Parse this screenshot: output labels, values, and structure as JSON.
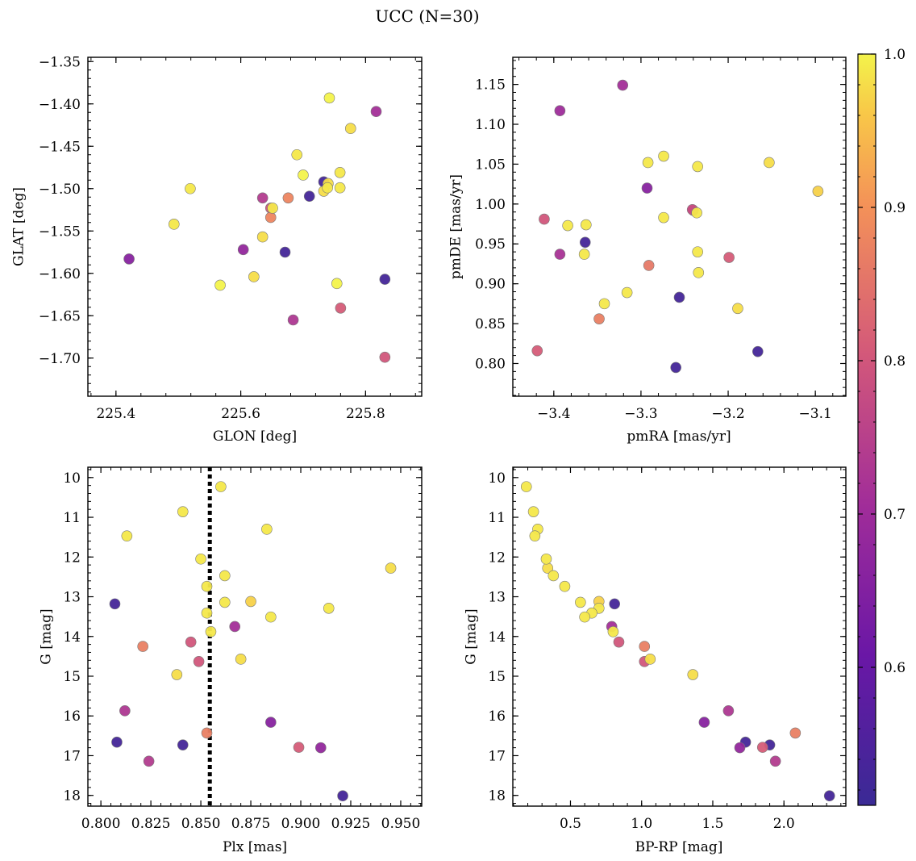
{
  "title": "UCC (N=30)",
  "colorbar": {
    "cmap": "plasma",
    "range": [
      0.51,
      1.0
    ],
    "ticks": [
      0.6,
      0.7,
      0.8,
      0.9,
      1.0
    ],
    "tick_labels": [
      "0.6",
      "0.7",
      "0.8",
      "0.9",
      "1.0"
    ]
  },
  "chart_data": [
    {
      "type": "scatter",
      "xlabel": "GLON [deg]",
      "ylabel": "GLAT [deg]",
      "xlim": [
        225.355,
        225.89
      ],
      "ylim": [
        -1.745,
        -1.345
      ],
      "y_inverted": false,
      "xticks": [
        225.4,
        225.6,
        225.8
      ],
      "xtick_labels": [
        "225.4",
        "225.6",
        "225.8"
      ],
      "yticks": [
        -1.35,
        -1.4,
        -1.45,
        -1.5,
        -1.55,
        -1.6,
        -1.65,
        -1.7
      ],
      "ytick_labels": [
        "−1.35",
        "−1.40",
        "−1.45",
        "−1.50",
        "−1.55",
        "−1.60",
        "−1.65",
        "−1.70"
      ],
      "points": [
        {
          "x": 225.742,
          "y": -1.393,
          "c": 1.0
        },
        {
          "x": 225.817,
          "y": -1.409,
          "c": 0.71
        },
        {
          "x": 225.776,
          "y": -1.429,
          "c": 0.98
        },
        {
          "x": 225.69,
          "y": -1.46,
          "c": 0.99
        },
        {
          "x": 225.759,
          "y": -1.481,
          "c": 0.99
        },
        {
          "x": 225.7,
          "y": -1.484,
          "c": 1.0
        },
        {
          "x": 225.733,
          "y": -1.492,
          "c": 0.53
        },
        {
          "x": 225.74,
          "y": -1.494,
          "c": 0.98
        },
        {
          "x": 225.759,
          "y": -1.499,
          "c": 0.99
        },
        {
          "x": 225.739,
          "y": -1.499,
          "c": 0.99
        },
        {
          "x": 225.733,
          "y": -1.503,
          "c": 0.98
        },
        {
          "x": 225.519,
          "y": -1.5,
          "c": 0.99
        },
        {
          "x": 225.635,
          "y": -1.511,
          "c": 0.74
        },
        {
          "x": 225.71,
          "y": -1.509,
          "c": 0.53
        },
        {
          "x": 225.676,
          "y": -1.511,
          "c": 0.88
        },
        {
          "x": 225.648,
          "y": -1.523,
          "c": 0.79
        },
        {
          "x": 225.651,
          "y": -1.523,
          "c": 0.99
        },
        {
          "x": 225.648,
          "y": -1.534,
          "c": 0.88
        },
        {
          "x": 225.493,
          "y": -1.542,
          "c": 0.99
        },
        {
          "x": 225.635,
          "y": -1.557,
          "c": 0.98
        },
        {
          "x": 225.604,
          "y": -1.572,
          "c": 0.68
        },
        {
          "x": 225.671,
          "y": -1.575,
          "c": 0.53
        },
        {
          "x": 225.421,
          "y": -1.583,
          "c": 0.66
        },
        {
          "x": 225.621,
          "y": -1.604,
          "c": 0.98
        },
        {
          "x": 225.831,
          "y": -1.607,
          "c": 0.53
        },
        {
          "x": 225.754,
          "y": -1.612,
          "c": 1.0
        },
        {
          "x": 225.567,
          "y": -1.614,
          "c": 1.0
        },
        {
          "x": 225.76,
          "y": -1.641,
          "c": 0.81
        },
        {
          "x": 225.684,
          "y": -1.655,
          "c": 0.73
        },
        {
          "x": 225.831,
          "y": -1.699,
          "c": 0.8
        }
      ]
    },
    {
      "type": "scatter",
      "xlabel": "pmRA [mas/yr]",
      "ylabel": "pmDE [mas/yr]",
      "xlim": [
        -3.447,
        -3.065
      ],
      "ylim": [
        0.759,
        1.184
      ],
      "y_inverted": false,
      "xticks": [
        -3.4,
        -3.3,
        -3.2,
        -3.1
      ],
      "xtick_labels": [
        "−3.4",
        "−3.3",
        "−3.2",
        "−3.1"
      ],
      "yticks": [
        0.8,
        0.85,
        0.9,
        0.95,
        1.0,
        1.05,
        1.1,
        1.15
      ],
      "ytick_labels": [
        "0.80",
        "0.85",
        "0.90",
        "0.95",
        "1.00",
        "1.05",
        "1.10",
        "1.15"
      ],
      "points": [
        {
          "x": -3.321,
          "y": 1.149,
          "c": 0.71
        },
        {
          "x": -3.393,
          "y": 1.117,
          "c": 0.7
        },
        {
          "x": -3.274,
          "y": 1.06,
          "c": 0.99
        },
        {
          "x": -3.292,
          "y": 1.052,
          "c": 0.99
        },
        {
          "x": -3.235,
          "y": 1.047,
          "c": 0.99
        },
        {
          "x": -3.153,
          "y": 1.052,
          "c": 0.98
        },
        {
          "x": -3.293,
          "y": 1.02,
          "c": 0.66
        },
        {
          "x": -3.097,
          "y": 1.016,
          "c": 0.97
        },
        {
          "x": -3.241,
          "y": 0.993,
          "c": 0.78
        },
        {
          "x": -3.24,
          "y": 0.992,
          "c": 0.76
        },
        {
          "x": -3.236,
          "y": 0.989,
          "c": 0.99
        },
        {
          "x": -3.274,
          "y": 0.983,
          "c": 0.99
        },
        {
          "x": -3.411,
          "y": 0.981,
          "c": 0.8
        },
        {
          "x": -3.384,
          "y": 0.973,
          "c": 0.99
        },
        {
          "x": -3.363,
          "y": 0.974,
          "c": 0.99
        },
        {
          "x": -3.364,
          "y": 0.952,
          "c": 0.53
        },
        {
          "x": -3.235,
          "y": 0.94,
          "c": 0.99
        },
        {
          "x": -3.393,
          "y": 0.937,
          "c": 0.72
        },
        {
          "x": -3.365,
          "y": 0.937,
          "c": 0.99
        },
        {
          "x": -3.199,
          "y": 0.933,
          "c": 0.81
        },
        {
          "x": -3.291,
          "y": 0.923,
          "c": 0.86
        },
        {
          "x": -3.234,
          "y": 0.914,
          "c": 0.99
        },
        {
          "x": -3.316,
          "y": 0.889,
          "c": 0.99
        },
        {
          "x": -3.256,
          "y": 0.883,
          "c": 0.53
        },
        {
          "x": -3.342,
          "y": 0.875,
          "c": 0.99
        },
        {
          "x": -3.189,
          "y": 0.869,
          "c": 0.98
        },
        {
          "x": -3.348,
          "y": 0.856,
          "c": 0.87
        },
        {
          "x": -3.419,
          "y": 0.816,
          "c": 0.81
        },
        {
          "x": -3.166,
          "y": 0.815,
          "c": 0.53
        },
        {
          "x": -3.26,
          "y": 0.795,
          "c": 0.53
        }
      ]
    },
    {
      "type": "scatter",
      "xlabel": "Plx [mas]",
      "ylabel": "G [mag]",
      "xlim": [
        0.7935,
        0.9605
      ],
      "ylim": [
        18.27,
        9.74
      ],
      "y_inverted": true,
      "vline": {
        "x": 0.8545,
        "style": "dotted",
        "color": "#000000"
      },
      "xticks": [
        0.8,
        0.825,
        0.85,
        0.875,
        0.9,
        0.925,
        0.95
      ],
      "xtick_labels": [
        "0.800",
        "0.825",
        "0.850",
        "0.875",
        "0.900",
        "0.925",
        "0.950"
      ],
      "yticks": [
        10,
        11,
        12,
        13,
        14,
        15,
        16,
        17,
        18
      ],
      "ytick_labels": [
        "10",
        "11",
        "12",
        "13",
        "14",
        "15",
        "16",
        "17",
        "18"
      ],
      "points": [
        {
          "x": 0.86,
          "y": 10.23,
          "c": 0.99
        },
        {
          "x": 0.841,
          "y": 10.86,
          "c": 0.99
        },
        {
          "x": 0.883,
          "y": 11.3,
          "c": 0.99
        },
        {
          "x": 0.813,
          "y": 11.47,
          "c": 0.99
        },
        {
          "x": 0.85,
          "y": 12.05,
          "c": 0.99
        },
        {
          "x": 0.945,
          "y": 12.28,
          "c": 0.98
        },
        {
          "x": 0.862,
          "y": 12.47,
          "c": 0.99
        },
        {
          "x": 0.853,
          "y": 12.74,
          "c": 0.99
        },
        {
          "x": 0.807,
          "y": 13.18,
          "c": 0.53
        },
        {
          "x": 0.875,
          "y": 13.12,
          "c": 0.97
        },
        {
          "x": 0.862,
          "y": 13.14,
          "c": 0.99
        },
        {
          "x": 0.914,
          "y": 13.29,
          "c": 0.99
        },
        {
          "x": 0.853,
          "y": 13.41,
          "c": 0.99
        },
        {
          "x": 0.885,
          "y": 13.51,
          "c": 0.99
        },
        {
          "x": 0.867,
          "y": 13.75,
          "c": 0.71
        },
        {
          "x": 0.855,
          "y": 13.88,
          "c": 0.99
        },
        {
          "x": 0.845,
          "y": 14.14,
          "c": 0.8
        },
        {
          "x": 0.821,
          "y": 14.25,
          "c": 0.87
        },
        {
          "x": 0.838,
          "y": 14.96,
          "c": 0.98
        },
        {
          "x": 0.849,
          "y": 14.63,
          "c": 0.8
        },
        {
          "x": 0.87,
          "y": 14.57,
          "c": 0.98
        },
        {
          "x": 0.812,
          "y": 15.87,
          "c": 0.73
        },
        {
          "x": 0.885,
          "y": 16.16,
          "c": 0.66
        },
        {
          "x": 0.853,
          "y": 16.43,
          "c": 0.87
        },
        {
          "x": 0.808,
          "y": 16.66,
          "c": 0.53
        },
        {
          "x": 0.841,
          "y": 16.73,
          "c": 0.53
        },
        {
          "x": 0.899,
          "y": 16.79,
          "c": 0.81
        },
        {
          "x": 0.91,
          "y": 16.8,
          "c": 0.68
        },
        {
          "x": 0.824,
          "y": 17.14,
          "c": 0.74
        },
        {
          "x": 0.921,
          "y": 18.01,
          "c": 0.53
        }
      ]
    },
    {
      "type": "scatter",
      "xlabel": "BP-RP [mag]",
      "ylabel": "G [mag]",
      "xlim": [
        0.095,
        2.435
      ],
      "ylim": [
        18.27,
        9.74
      ],
      "y_inverted": true,
      "xticks": [
        0.5,
        1.0,
        1.5,
        2.0
      ],
      "xtick_labels": [
        "0.5",
        "1.0",
        "1.5",
        "2.0"
      ],
      "yticks": [
        10,
        11,
        12,
        13,
        14,
        15,
        16,
        17,
        18
      ],
      "ytick_labels": [
        "10",
        "11",
        "12",
        "13",
        "14",
        "15",
        "16",
        "17",
        "18"
      ],
      "points": [
        {
          "x": 0.19,
          "y": 10.23,
          "c": 0.99
        },
        {
          "x": 0.24,
          "y": 10.86,
          "c": 0.99
        },
        {
          "x": 0.27,
          "y": 11.3,
          "c": 0.99
        },
        {
          "x": 0.25,
          "y": 11.47,
          "c": 0.99
        },
        {
          "x": 0.33,
          "y": 12.05,
          "c": 0.99
        },
        {
          "x": 0.34,
          "y": 12.28,
          "c": 0.98
        },
        {
          "x": 0.38,
          "y": 12.47,
          "c": 0.99
        },
        {
          "x": 0.46,
          "y": 12.74,
          "c": 0.99
        },
        {
          "x": 0.81,
          "y": 13.18,
          "c": 0.53
        },
        {
          "x": 0.7,
          "y": 13.12,
          "c": 0.97
        },
        {
          "x": 0.57,
          "y": 13.14,
          "c": 0.99
        },
        {
          "x": 0.7,
          "y": 13.29,
          "c": 0.99
        },
        {
          "x": 0.65,
          "y": 13.41,
          "c": 0.99
        },
        {
          "x": 0.6,
          "y": 13.51,
          "c": 0.99
        },
        {
          "x": 0.79,
          "y": 13.75,
          "c": 0.71
        },
        {
          "x": 0.8,
          "y": 13.88,
          "c": 0.99
        },
        {
          "x": 0.84,
          "y": 14.14,
          "c": 0.8
        },
        {
          "x": 1.02,
          "y": 14.25,
          "c": 0.87
        },
        {
          "x": 1.36,
          "y": 14.96,
          "c": 0.98
        },
        {
          "x": 1.02,
          "y": 14.63,
          "c": 0.8
        },
        {
          "x": 1.06,
          "y": 14.57,
          "c": 0.98
        },
        {
          "x": 1.61,
          "y": 15.87,
          "c": 0.73
        },
        {
          "x": 1.44,
          "y": 16.16,
          "c": 0.66
        },
        {
          "x": 2.08,
          "y": 16.43,
          "c": 0.87
        },
        {
          "x": 1.73,
          "y": 16.66,
          "c": 0.53
        },
        {
          "x": 1.9,
          "y": 16.73,
          "c": 0.53
        },
        {
          "x": 1.85,
          "y": 16.79,
          "c": 0.81
        },
        {
          "x": 1.69,
          "y": 16.8,
          "c": 0.68
        },
        {
          "x": 1.94,
          "y": 17.14,
          "c": 0.74
        },
        {
          "x": 2.32,
          "y": 18.01,
          "c": 0.53
        }
      ]
    }
  ]
}
